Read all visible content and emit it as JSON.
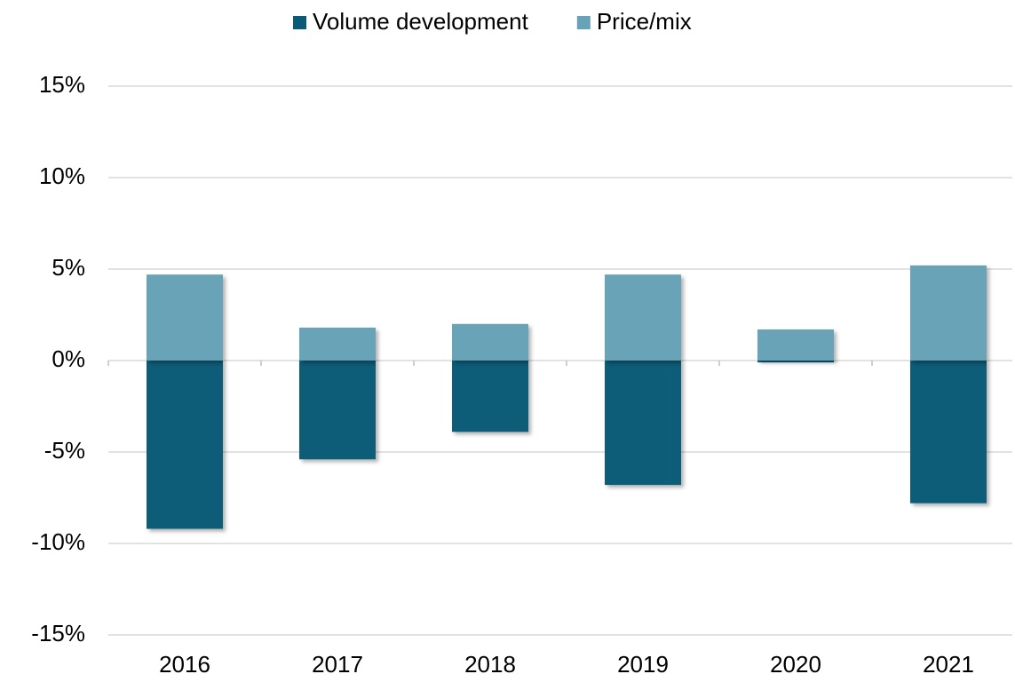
{
  "chart_data": {
    "type": "bar",
    "stacked": true,
    "categories": [
      "2016",
      "2017",
      "2018",
      "2019",
      "2020",
      "2021"
    ],
    "series": [
      {
        "name": "Volume development",
        "color": "#0b5b78",
        "values": [
          -9.2,
          -5.4,
          -3.9,
          -6.8,
          -0.1,
          -7.8
        ]
      },
      {
        "name": "Price/mix",
        "color": "#67a3b8",
        "values": [
          4.7,
          1.8,
          2.0,
          4.7,
          1.7,
          5.2
        ]
      }
    ],
    "ylim": [
      -15,
      15
    ],
    "yticks": [
      {
        "value": -15,
        "label": "-15%"
      },
      {
        "value": -10,
        "label": "-10%"
      },
      {
        "value": -5,
        "label": "-5%"
      },
      {
        "value": 0,
        "label": "0%"
      },
      {
        "value": 5,
        "label": "5%"
      },
      {
        "value": 10,
        "label": "10%"
      },
      {
        "value": 15,
        "label": "15%"
      }
    ],
    "grid": true,
    "legend": "top"
  }
}
